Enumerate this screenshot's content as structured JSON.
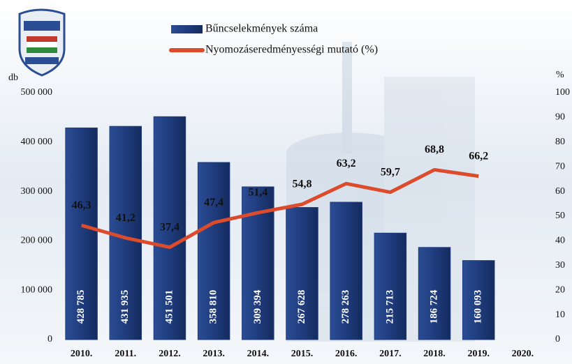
{
  "chart_data": {
    "type": "bar",
    "categories": [
      "2010.",
      "2011.",
      "2012.",
      "2013.",
      "2014.",
      "2015.",
      "2016.",
      "2017.",
      "2018.",
      "2019.",
      "2020."
    ],
    "series": [
      {
        "name": "Bűncselekmények száma",
        "color": "#1f3c7d",
        "values": [
          428785,
          431935,
          451501,
          358810,
          309394,
          267628,
          278263,
          215713,
          186724,
          160093,
          null
        ],
        "value_labels": [
          "428 785",
          "431 935",
          "451 501",
          "358 810",
          "309 394",
          "267 628",
          "278 263",
          "215 713",
          "186 724",
          "160 093",
          null
        ]
      },
      {
        "name": "Nyomozáseredményességi mutató (%)",
        "color": "#dc4b2c",
        "type": "line",
        "axis": "y2",
        "values": [
          46.3,
          41.2,
          37.4,
          47.4,
          51.4,
          54.8,
          63.2,
          59.7,
          68.8,
          66.2,
          null
        ],
        "value_labels": [
          "46,3",
          "41,2",
          "37,4",
          "47,4",
          "51,4",
          "54,8",
          "63,2",
          "59,7",
          "68,8",
          "66,2",
          null
        ]
      }
    ],
    "y_label": "db",
    "y2_label": "%",
    "ylim": [
      0,
      500000
    ],
    "yticks": [
      0,
      {
        "value": 100000,
        "label": "100 000"
      },
      {
        "value": 200000,
        "label": "200 000"
      },
      {
        "value": 300000,
        "label": "300 000"
      },
      {
        "value": 400000,
        "label": "400 000"
      },
      {
        "value": 500000,
        "label": "500 000"
      }
    ],
    "y2lim": [
      0,
      100
    ],
    "y2ticks": [
      0,
      10,
      20,
      30,
      40,
      50,
      60,
      70,
      80,
      90,
      100
    ],
    "grid": false
  }
}
